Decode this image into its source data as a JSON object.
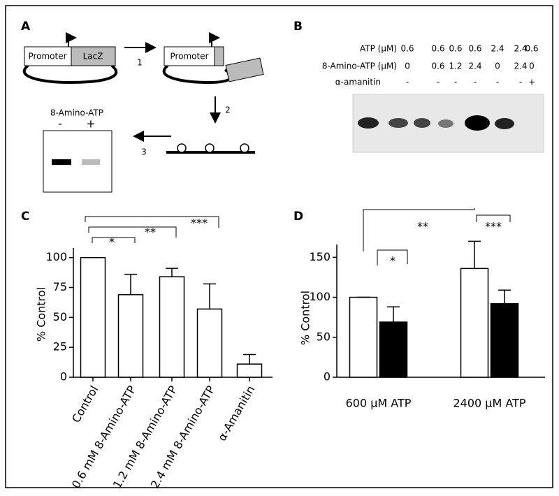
{
  "panels": {
    "a": {
      "letter": "A",
      "promoter_1": "Promoter",
      "lacz": "LacZ",
      "step_1": "1",
      "promoter_2": "Promoter",
      "step_2": "2",
      "step_3": "3",
      "gel_title": "8-Amino-ATP",
      "gel_minus": "-",
      "gel_plus": "+"
    },
    "b": {
      "letter": "B",
      "rows": [
        {
          "label": "ATP (μM)",
          "cells": [
            0.6,
            0.6,
            0.6,
            0.6,
            2.4,
            2.4,
            0.6
          ]
        },
        {
          "label": "8-Amino-ATP (μM)",
          "cells": [
            0,
            0.6,
            1.2,
            2.4,
            0,
            2.4,
            0
          ]
        },
        {
          "label": "α-amanitin",
          "cells": [
            "-",
            "-",
            "-",
            "-",
            "-",
            "-",
            "+"
          ]
        }
      ]
    }
  },
  "chart_data": [
    {
      "type": "bar",
      "panel": "C",
      "ylabel": "% Control",
      "categories": [
        "Control",
        "0.6 mM 8-Amino-ATP",
        "1.2 mM 8-Amino-ATP",
        "2.4 mM 8-Amino-ATP",
        "α-Amanitin"
      ],
      "values": [
        100,
        69,
        84,
        57,
        11
      ],
      "errors": [
        0,
        17,
        7,
        21,
        8
      ],
      "color": "#ffffff",
      "ylim": [
        0,
        108
      ],
      "yticks": [
        0,
        25,
        50,
        75,
        100
      ],
      "significance": [
        "***",
        "**",
        "*"
      ]
    },
    {
      "type": "grouped-bar",
      "panel": "D",
      "ylabel": "% Control",
      "categories": [
        "600 μM ATP",
        "2400 μM ATP"
      ],
      "series": [
        {
          "color": "#ffffff",
          "values": [
            100,
            136
          ],
          "errors": [
            0,
            34
          ]
        },
        {
          "color": "#000000",
          "values": [
            69,
            92
          ],
          "errors": [
            19,
            17
          ]
        }
      ],
      "ylim": [
        0,
        166
      ],
      "yticks": [
        0,
        50,
        100,
        150
      ],
      "significance": [
        "**",
        "*",
        "***"
      ]
    }
  ]
}
